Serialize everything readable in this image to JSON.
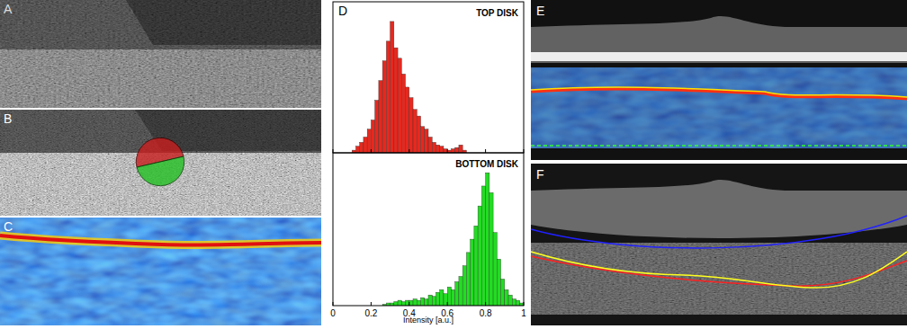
{
  "figure": {
    "panel_labels": [
      "A",
      "B",
      "C",
      "D",
      "E",
      "F"
    ]
  },
  "chart_data": [
    {
      "type": "histogram",
      "title": "TOP DISK",
      "color": "#e8281e",
      "bins": [
        0.1,
        0.12,
        0.14,
        0.16,
        0.18,
        0.2,
        0.22,
        0.24,
        0.26,
        0.28,
        0.3,
        0.32,
        0.34,
        0.36,
        0.38,
        0.4,
        0.42,
        0.44,
        0.46,
        0.48,
        0.5,
        0.52,
        0.54,
        0.56,
        0.58,
        0.6,
        0.62,
        0.64,
        0.66,
        0.68,
        0.7
      ],
      "values": [
        2,
        5,
        8,
        12,
        18,
        25,
        40,
        55,
        70,
        85,
        100,
        80,
        72,
        60,
        50,
        42,
        33,
        28,
        20,
        18,
        12,
        8,
        6,
        5,
        3,
        2,
        3,
        4,
        6,
        2
      ],
      "xlim": [
        0,
        1
      ],
      "xticks": [
        0,
        0.2,
        0.4,
        0.6,
        0.8,
        1
      ],
      "ylim": [
        0,
        115
      ],
      "tick_labels": false
    },
    {
      "type": "histogram",
      "title": "BOTTOM DISK",
      "color": "#22dd22",
      "bins": [
        0.26,
        0.28,
        0.3,
        0.32,
        0.34,
        0.36,
        0.38,
        0.4,
        0.42,
        0.44,
        0.46,
        0.48,
        0.5,
        0.52,
        0.54,
        0.56,
        0.58,
        0.6,
        0.62,
        0.64,
        0.66,
        0.68,
        0.7,
        0.72,
        0.74,
        0.76,
        0.78,
        0.8,
        0.82,
        0.84,
        0.86,
        0.88,
        0.9,
        0.92,
        0.94,
        0.96,
        0.98,
        1.0
      ],
      "values": [
        1,
        2,
        2,
        3,
        4,
        3,
        4,
        4,
        5,
        4,
        6,
        5,
        8,
        7,
        10,
        12,
        9,
        14,
        12,
        18,
        22,
        30,
        40,
        50,
        60,
        75,
        90,
        100,
        85,
        55,
        35,
        20,
        12,
        8,
        5,
        4,
        2
      ],
      "xlim": [
        0,
        1
      ],
      "xticks": [
        0,
        0.2,
        0.4,
        0.6,
        0.8,
        1
      ],
      "ylim": [
        0,
        115
      ],
      "xlabel": "Intensity [a.u.]",
      "tick_labels": "x"
    }
  ]
}
